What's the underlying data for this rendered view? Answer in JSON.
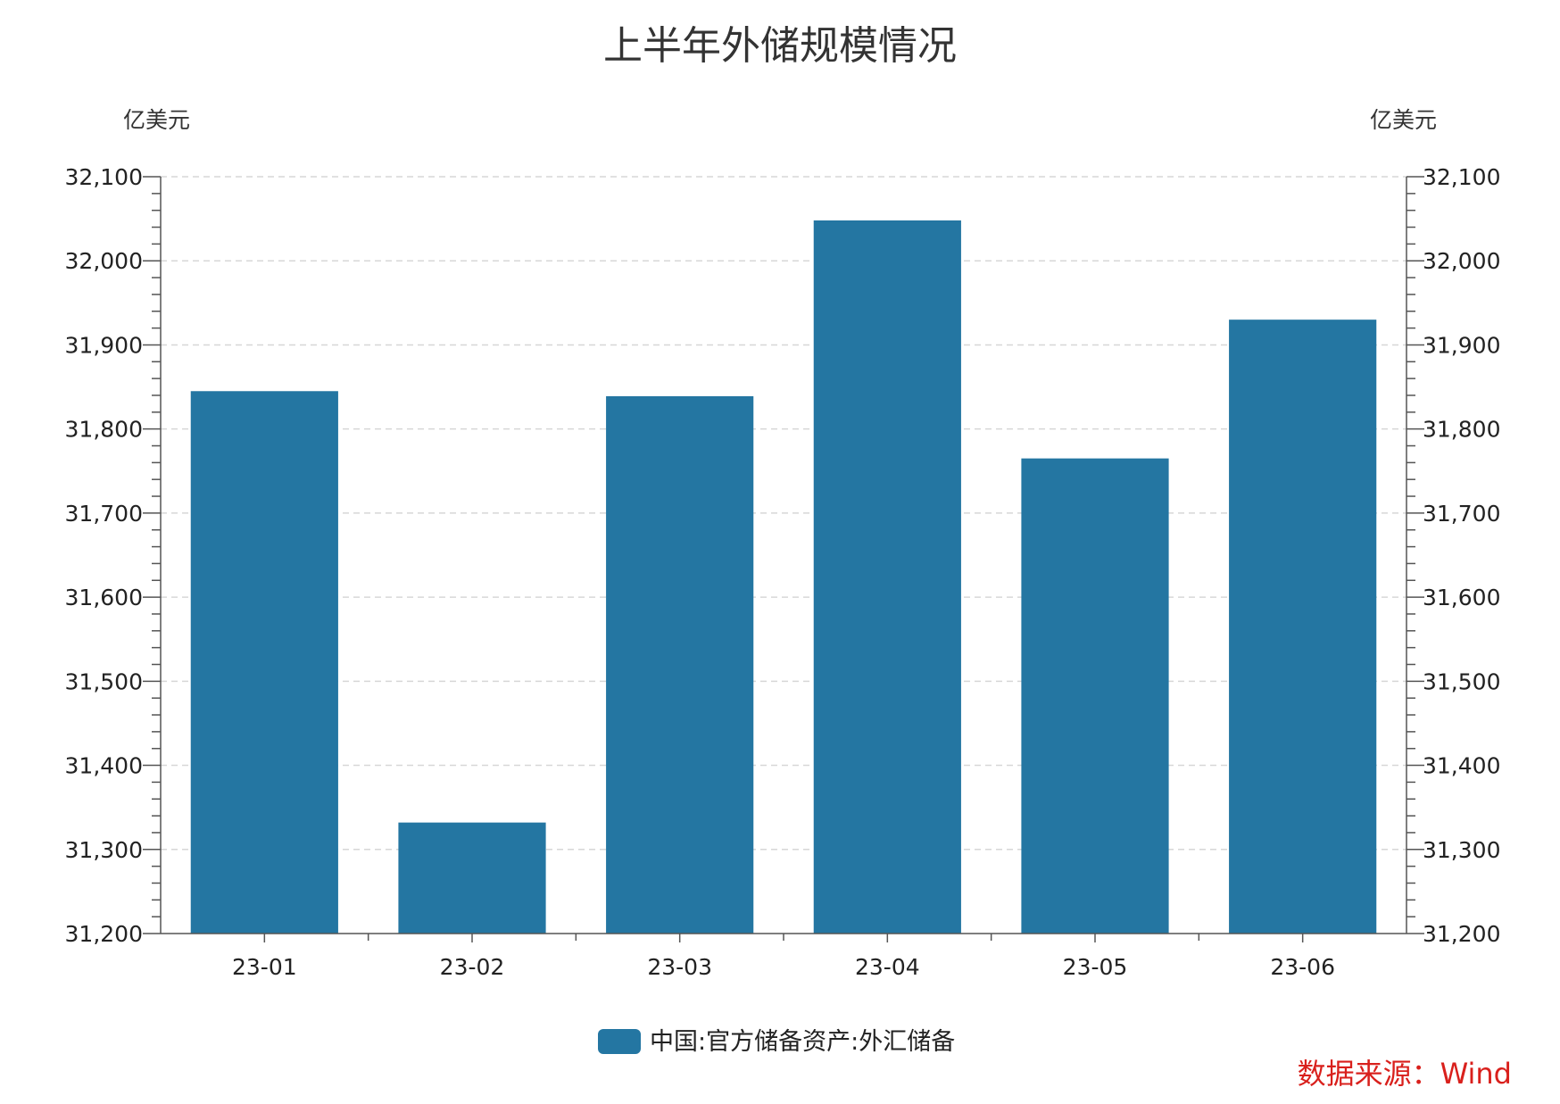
{
  "chart_data": {
    "type": "bar",
    "title": "上半年外储规模情况",
    "y_unit_left": "亿美元",
    "y_unit_right": "亿美元",
    "categories": [
      "23-01",
      "23-02",
      "23-03",
      "23-04",
      "23-05",
      "23-06"
    ],
    "series": [
      {
        "name": "中国:官方储备资产:外汇储备",
        "values": [
          31845,
          31332,
          31839,
          32048,
          31765,
          31930
        ]
      }
    ],
    "ylim": [
      31200,
      32100
    ],
    "yticks": [
      31200,
      31300,
      31400,
      31500,
      31600,
      31700,
      31800,
      31900,
      32000,
      32100
    ],
    "ytick_labels": [
      "31,200",
      "31,300",
      "31,400",
      "31,500",
      "31,600",
      "31,700",
      "31,800",
      "31,900",
      "32,000",
      "32,100"
    ],
    "grid": true,
    "legend_position": "bottom",
    "bar_color": "#2476a2",
    "source_text": "数据来源：Wind",
    "source_color": "#d9201c"
  }
}
